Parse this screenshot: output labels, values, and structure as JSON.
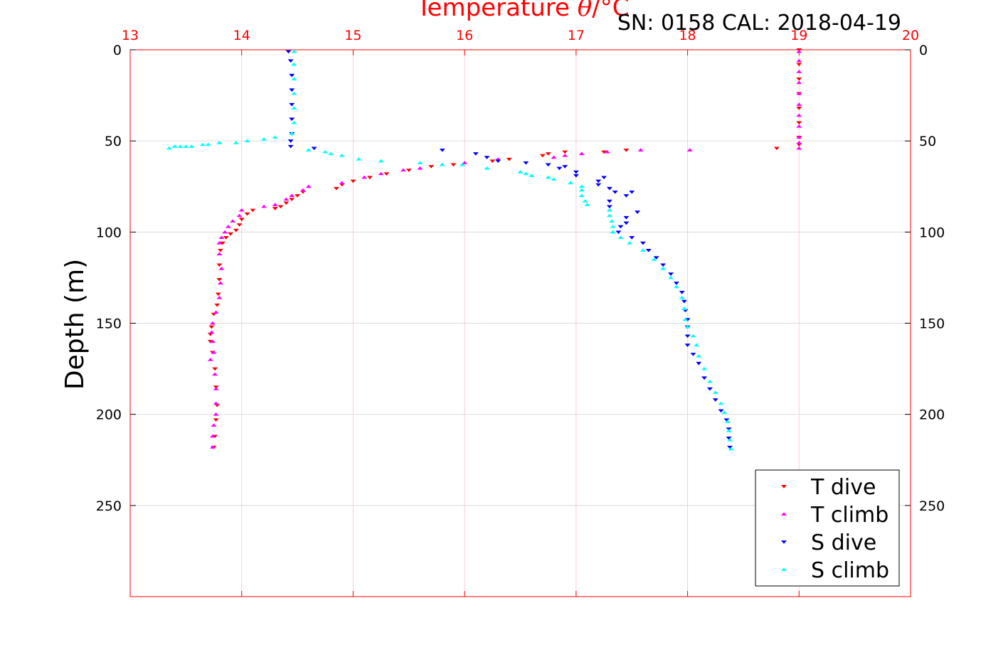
{
  "header": {
    "serial_cal": "SN: 0158  CAL: 2018-04-19"
  },
  "chart_data": {
    "type": "scatter",
    "title_prefix": "Temperature ",
    "title_theta": "θ",
    "title_suffix": "/°C",
    "ylabel": "Depth (m)",
    "xlim": [
      13,
      20
    ],
    "ylim": [
      300,
      0
    ],
    "x_ticks": [
      13,
      14,
      15,
      16,
      17,
      18,
      19,
      20
    ],
    "y_ticks": [
      0,
      50,
      100,
      150,
      200,
      250
    ],
    "grid": true,
    "grid_color": "#f5cfd9",
    "axis_color": "#ff0000",
    "legend_position": "bottom-right",
    "series": [
      {
        "name": "T dive",
        "marker": "triangle-down",
        "color": "#ff0000",
        "points": [
          [
            19.0,
            0
          ],
          [
            19.0,
            8
          ],
          [
            19.0,
            16
          ],
          [
            19.0,
            24
          ],
          [
            19.0,
            32
          ],
          [
            19.0,
            40
          ],
          [
            19.0,
            48
          ],
          [
            19.0,
            52
          ],
          [
            18.8,
            54
          ],
          [
            17.45,
            55
          ],
          [
            17.25,
            56
          ],
          [
            16.9,
            56
          ],
          [
            16.75,
            57
          ],
          [
            16.7,
            58
          ],
          [
            16.4,
            60
          ],
          [
            16.25,
            61
          ],
          [
            15.9,
            63
          ],
          [
            15.7,
            64
          ],
          [
            15.5,
            66
          ],
          [
            15.3,
            68
          ],
          [
            15.15,
            70
          ],
          [
            15.0,
            72
          ],
          [
            14.9,
            74
          ],
          [
            14.85,
            76
          ],
          [
            14.55,
            78
          ],
          [
            14.5,
            80
          ],
          [
            14.45,
            82
          ],
          [
            14.4,
            84
          ],
          [
            14.35,
            86
          ],
          [
            14.3,
            87
          ],
          [
            14.1,
            88
          ],
          [
            14.05,
            90
          ],
          [
            14.0,
            93
          ],
          [
            13.98,
            96
          ],
          [
            13.95,
            99
          ],
          [
            13.9,
            101
          ],
          [
            13.86,
            103
          ],
          [
            13.83,
            106
          ],
          [
            13.81,
            110
          ],
          [
            13.8,
            118
          ],
          [
            13.8,
            126
          ],
          [
            13.79,
            134
          ],
          [
            13.78,
            140
          ],
          [
            13.75,
            145
          ],
          [
            13.73,
            152
          ],
          [
            13.72,
            156
          ],
          [
            13.72,
            160
          ],
          [
            13.74,
            166
          ],
          [
            13.76,
            175
          ],
          [
            13.77,
            185
          ],
          [
            13.78,
            195
          ],
          [
            13.77,
            203
          ],
          [
            13.76,
            212
          ],
          [
            13.75,
            218
          ]
        ]
      },
      {
        "name": "T climb",
        "marker": "triangle-up",
        "color": "#ff00ff",
        "points": [
          [
            19.0,
            1
          ],
          [
            19.0,
            6
          ],
          [
            19.0,
            12
          ],
          [
            19.0,
            18
          ],
          [
            19.0,
            24
          ],
          [
            19.0,
            30
          ],
          [
            19.0,
            36
          ],
          [
            19.0,
            42
          ],
          [
            19.0,
            48
          ],
          [
            19.0,
            51
          ],
          [
            19.0,
            54
          ],
          [
            18.02,
            55
          ],
          [
            17.58,
            55
          ],
          [
            17.28,
            56
          ],
          [
            17.05,
            57
          ],
          [
            16.9,
            58
          ],
          [
            16.8,
            59
          ],
          [
            16.3,
            60
          ],
          [
            16.0,
            62
          ],
          [
            15.8,
            63
          ],
          [
            15.6,
            65
          ],
          [
            15.45,
            66
          ],
          [
            15.25,
            68
          ],
          [
            15.1,
            70
          ],
          [
            14.9,
            73
          ],
          [
            14.6,
            75
          ],
          [
            14.55,
            77
          ],
          [
            14.45,
            80
          ],
          [
            14.4,
            82
          ],
          [
            14.3,
            85
          ],
          [
            14.2,
            86
          ],
          [
            14.0,
            88
          ],
          [
            13.98,
            91
          ],
          [
            13.92,
            94
          ],
          [
            13.88,
            97
          ],
          [
            13.85,
            100
          ],
          [
            13.82,
            103
          ],
          [
            13.8,
            106
          ],
          [
            13.8,
            112
          ],
          [
            13.82,
            120
          ],
          [
            13.81,
            128
          ],
          [
            13.8,
            136
          ],
          [
            13.77,
            144
          ],
          [
            13.74,
            150
          ],
          [
            13.73,
            155
          ],
          [
            13.74,
            160
          ],
          [
            13.75,
            166
          ],
          [
            13.72,
            170
          ],
          [
            13.76,
            178
          ],
          [
            13.77,
            186
          ],
          [
            13.77,
            194
          ],
          [
            13.77,
            200
          ],
          [
            13.75,
            206
          ],
          [
            13.74,
            212
          ],
          [
            13.74,
            218
          ]
        ]
      },
      {
        "name": "S dive",
        "marker": "triangle-down",
        "color": "#0000ff",
        "points": [
          [
            14.42,
            1
          ],
          [
            14.44,
            6
          ],
          [
            14.45,
            14
          ],
          [
            14.45,
            22
          ],
          [
            14.45,
            30
          ],
          [
            14.45,
            38
          ],
          [
            14.45,
            46
          ],
          [
            14.44,
            50
          ],
          [
            14.44,
            53
          ],
          [
            14.65,
            54
          ],
          [
            15.8,
            55
          ],
          [
            16.1,
            57
          ],
          [
            16.2,
            59
          ],
          [
            16.3,
            61
          ],
          [
            16.55,
            62
          ],
          [
            16.75,
            63
          ],
          [
            16.9,
            64
          ],
          [
            16.85,
            65
          ],
          [
            17.0,
            67
          ],
          [
            17.0,
            69
          ],
          [
            17.25,
            70
          ],
          [
            17.2,
            72
          ],
          [
            17.2,
            74
          ],
          [
            17.3,
            76
          ],
          [
            17.35,
            78
          ],
          [
            17.5,
            78
          ],
          [
            17.45,
            80
          ],
          [
            17.3,
            83
          ],
          [
            17.3,
            86
          ],
          [
            17.55,
            89
          ],
          [
            17.45,
            92
          ],
          [
            17.45,
            95
          ],
          [
            17.4,
            97
          ],
          [
            17.38,
            100
          ],
          [
            17.5,
            103
          ],
          [
            17.6,
            106
          ],
          [
            17.65,
            110
          ],
          [
            17.72,
            114
          ],
          [
            17.78,
            118
          ],
          [
            17.85,
            123
          ],
          [
            17.9,
            128
          ],
          [
            17.95,
            133
          ],
          [
            17.97,
            138
          ],
          [
            17.98,
            143
          ],
          [
            18.0,
            148
          ],
          [
            18.0,
            152
          ],
          [
            18.0,
            157
          ],
          [
            18.0,
            162
          ],
          [
            18.05,
            167
          ],
          [
            18.1,
            172
          ],
          [
            18.15,
            180
          ],
          [
            18.2,
            186
          ],
          [
            18.25,
            192
          ],
          [
            18.3,
            198
          ],
          [
            18.35,
            203
          ],
          [
            18.37,
            208
          ],
          [
            18.37,
            213
          ],
          [
            18.38,
            218
          ]
        ]
      },
      {
        "name": "S climb",
        "marker": "triangle-up",
        "color": "#00ffff",
        "points": [
          [
            14.47,
            1
          ],
          [
            14.47,
            8
          ],
          [
            14.47,
            16
          ],
          [
            14.47,
            24
          ],
          [
            14.47,
            32
          ],
          [
            14.47,
            40
          ],
          [
            14.45,
            46
          ],
          [
            14.3,
            48
          ],
          [
            14.2,
            49
          ],
          [
            14.05,
            50
          ],
          [
            13.95,
            51
          ],
          [
            13.8,
            51
          ],
          [
            13.7,
            52
          ],
          [
            13.65,
            52
          ],
          [
            13.55,
            53
          ],
          [
            13.5,
            53
          ],
          [
            13.45,
            53
          ],
          [
            13.4,
            53
          ],
          [
            13.35,
            54
          ],
          [
            14.6,
            55
          ],
          [
            14.75,
            56
          ],
          [
            14.8,
            57
          ],
          [
            14.9,
            58
          ],
          [
            15.05,
            60
          ],
          [
            15.25,
            61
          ],
          [
            15.6,
            62
          ],
          [
            15.8,
            63
          ],
          [
            15.98,
            63
          ],
          [
            16.2,
            65
          ],
          [
            16.5,
            67
          ],
          [
            16.55,
            68
          ],
          [
            16.6,
            69
          ],
          [
            16.75,
            70
          ],
          [
            16.8,
            71
          ],
          [
            16.95,
            73
          ],
          [
            17.05,
            75
          ],
          [
            17.05,
            77
          ],
          [
            17.05,
            80
          ],
          [
            17.08,
            83
          ],
          [
            17.1,
            85
          ],
          [
            17.3,
            88
          ],
          [
            17.3,
            91
          ],
          [
            17.32,
            94
          ],
          [
            17.33,
            97
          ],
          [
            17.33,
            100
          ],
          [
            17.4,
            103
          ],
          [
            17.48,
            106
          ],
          [
            17.6,
            110
          ],
          [
            17.7,
            115
          ],
          [
            17.78,
            120
          ],
          [
            17.85,
            125
          ],
          [
            17.9,
            130
          ],
          [
            17.95,
            136
          ],
          [
            17.97,
            142
          ],
          [
            17.98,
            148
          ],
          [
            18.0,
            152
          ],
          [
            18.05,
            157
          ],
          [
            18.08,
            162
          ],
          [
            18.1,
            168
          ],
          [
            18.15,
            175
          ],
          [
            18.2,
            182
          ],
          [
            18.25,
            188
          ],
          [
            18.3,
            194
          ],
          [
            18.33,
            199
          ],
          [
            18.36,
            204
          ],
          [
            18.37,
            209
          ],
          [
            18.38,
            214
          ],
          [
            18.39,
            219
          ]
        ]
      }
    ]
  }
}
